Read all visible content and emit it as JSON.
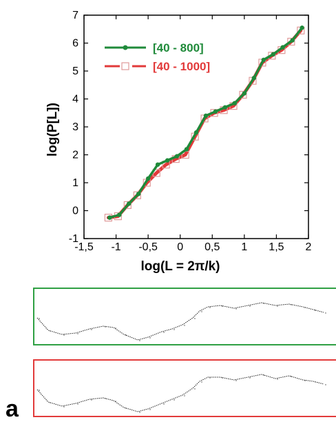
{
  "chart_data": {
    "type": "line",
    "xlabel": "log(L = 2π/k)",
    "ylabel": "log(P[L])",
    "xlim": [
      -1.5,
      2
    ],
    "ylim": [
      -1,
      7
    ],
    "x_ticks": [
      -1.5,
      -1,
      -0.5,
      0,
      0.5,
      1,
      1.5,
      2
    ],
    "x_tick_labels": [
      "-1,5",
      "-1",
      "-0,5",
      "0",
      "0,5",
      "1",
      "1,5",
      "2"
    ],
    "y_ticks": [
      -1,
      0,
      1,
      2,
      3,
      4,
      5,
      6,
      7
    ],
    "y_tick_labels": [
      "-1",
      "0",
      "1",
      "2",
      "3",
      "4",
      "5",
      "6",
      "7"
    ],
    "grid": false,
    "legend_position": "top-left",
    "series": [
      {
        "name": "[40 - 800]",
        "color": "#1f8a3a",
        "marker": "filled-circle",
        "x": [
          -1.1,
          -0.95,
          -0.8,
          -0.65,
          -0.5,
          -0.35,
          -0.2,
          -0.05,
          0.1,
          0.25,
          0.4,
          0.55,
          0.7,
          0.85,
          1.0,
          1.15,
          1.3,
          1.45,
          1.6,
          1.75,
          1.9
        ],
        "y": [
          -0.25,
          -0.15,
          0.25,
          0.6,
          1.15,
          1.65,
          1.8,
          1.95,
          2.2,
          2.8,
          3.4,
          3.55,
          3.7,
          3.85,
          4.2,
          4.75,
          5.4,
          5.6,
          5.85,
          6.1,
          6.55
        ]
      },
      {
        "name": "[40 - 1000]",
        "color": "#e23a3a",
        "marker": "open-square",
        "x": [
          -1.12,
          -0.97,
          -0.82,
          -0.67,
          -0.52,
          -0.37,
          -0.22,
          -0.07,
          0.08,
          0.23,
          0.38,
          0.53,
          0.68,
          0.83,
          0.98,
          1.13,
          1.28,
          1.43,
          1.58,
          1.73,
          1.88
        ],
        "y": [
          -0.25,
          -0.2,
          0.2,
          0.55,
          1.0,
          1.35,
          1.65,
          1.85,
          2.0,
          2.65,
          3.3,
          3.5,
          3.6,
          3.75,
          4.15,
          4.65,
          5.3,
          5.55,
          5.75,
          6.05,
          6.45
        ]
      }
    ]
  },
  "panels": [
    {
      "border_color": "#2ea043"
    },
    {
      "border_color": "#e23a3a"
    }
  ],
  "panel_label": "a"
}
